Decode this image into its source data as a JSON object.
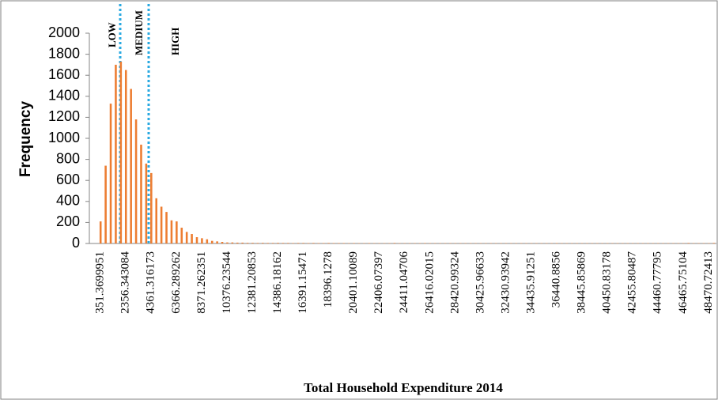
{
  "chart_data": {
    "type": "bar",
    "x_label": "Total Household Expenditure 2014",
    "y_label": "Frequency",
    "annotations": [
      "LOW",
      "MEDIUM",
      "HIGH"
    ],
    "color": "#ed7d31",
    "ylim": [
      0,
      2000
    ],
    "yticks": [
      0,
      200,
      400,
      600,
      800,
      1000,
      1200,
      1400,
      1600,
      1800,
      2000
    ],
    "categories": [
      "351.3699951",
      null,
      null,
      null,
      null,
      "2356.343084",
      null,
      null,
      null,
      null,
      "4361.316173",
      null,
      null,
      null,
      null,
      "6366.289262",
      null,
      null,
      null,
      null,
      "8371.262351",
      null,
      null,
      null,
      null,
      "10376.23544",
      null,
      null,
      null,
      null,
      "12381.20853",
      null,
      null,
      null,
      null,
      "14386.18162",
      null,
      null,
      null,
      null,
      "16391.15471",
      null,
      null,
      null,
      null,
      "18396.1278",
      null,
      null,
      null,
      null,
      "20401.10089",
      null,
      null,
      null,
      null,
      "22406.07397",
      null,
      null,
      null,
      null,
      "24411.04706",
      null,
      null,
      null,
      null,
      "26416.02015",
      null,
      null,
      null,
      null,
      "28420.99324",
      null,
      null,
      null,
      null,
      "30425.96633",
      null,
      null,
      null,
      null,
      "32430.93942",
      null,
      null,
      null,
      null,
      "34435.91251",
      null,
      null,
      null,
      null,
      "36440.8856",
      null,
      null,
      null,
      null,
      "38445.85869",
      null,
      null,
      null,
      null,
      "40450.83178",
      null,
      null,
      null,
      null,
      "42455.80487",
      null,
      null,
      null,
      null,
      "44460.77795",
      null,
      null,
      null,
      null,
      "46465.75104",
      null,
      null,
      null,
      null,
      "48470.72413",
      null
    ],
    "values": [
      210,
      740,
      1330,
      1700,
      1730,
      1650,
      1470,
      1180,
      940,
      760,
      670,
      430,
      350,
      300,
      220,
      210,
      150,
      110,
      90,
      60,
      50,
      40,
      25,
      20,
      15,
      10,
      10,
      8,
      8,
      6,
      6,
      5,
      6,
      5,
      5,
      6,
      5,
      5,
      4,
      5,
      5,
      4,
      5,
      4,
      4,
      5,
      4,
      4,
      4,
      3,
      4,
      3,
      3,
      4,
      3,
      3,
      3,
      3,
      5,
      3,
      3,
      3,
      3,
      3,
      4,
      3,
      3,
      3,
      3,
      3,
      3,
      3,
      3,
      3,
      3,
      3,
      3,
      3,
      3,
      3,
      3,
      3,
      3,
      3,
      3,
      3,
      3,
      3,
      3,
      3,
      4,
      3,
      3,
      3,
      3,
      3,
      3,
      3,
      3,
      3,
      3,
      3,
      3,
      3,
      3,
      3,
      3,
      3,
      3,
      3,
      3,
      3,
      3,
      3,
      3,
      3,
      5,
      3,
      3,
      3,
      3,
      5
    ]
  }
}
